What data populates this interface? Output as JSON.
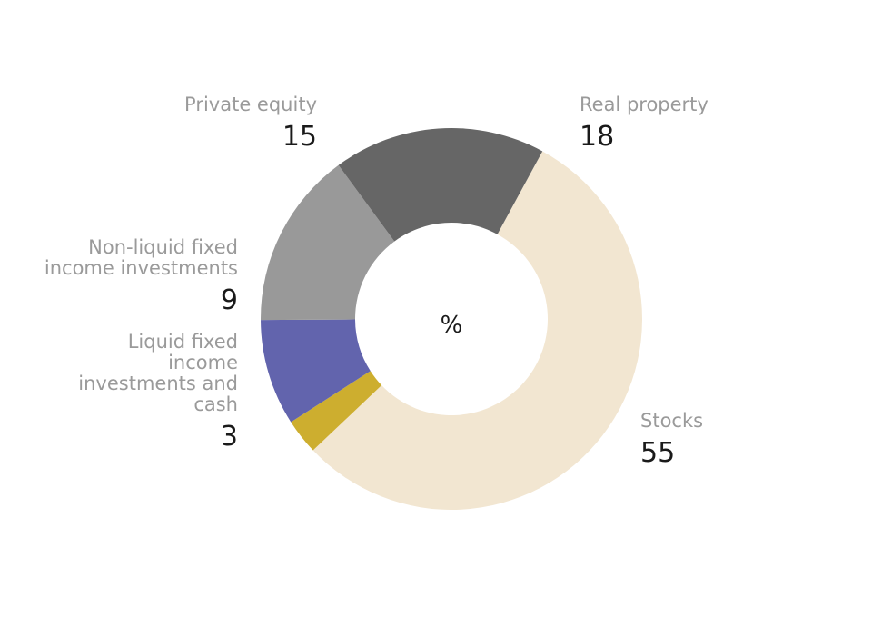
{
  "chart_data": {
    "type": "pie",
    "center_label": "%",
    "slices": [
      {
        "name": "Stocks",
        "name_lines": [
          "Stocks"
        ],
        "value": 55,
        "color": "#f2e6d1"
      },
      {
        "name": "Liquid fixed income investments and cash",
        "name_lines": [
          "Liquid fixed",
          "income",
          "investments and",
          "cash"
        ],
        "value": 3,
        "color": "#cdae2f"
      },
      {
        "name": "Non-liquid fixed income investments",
        "name_lines": [
          "Non-liquid fixed",
          "income investments"
        ],
        "value": 9,
        "color": "#6264ad"
      },
      {
        "name": "Private equity",
        "name_lines": [
          "Private equity"
        ],
        "value": 15,
        "color": "#999999"
      },
      {
        "name": "Real property",
        "name_lines": [
          "Real property"
        ],
        "value": 18,
        "color": "#666666"
      }
    ]
  }
}
